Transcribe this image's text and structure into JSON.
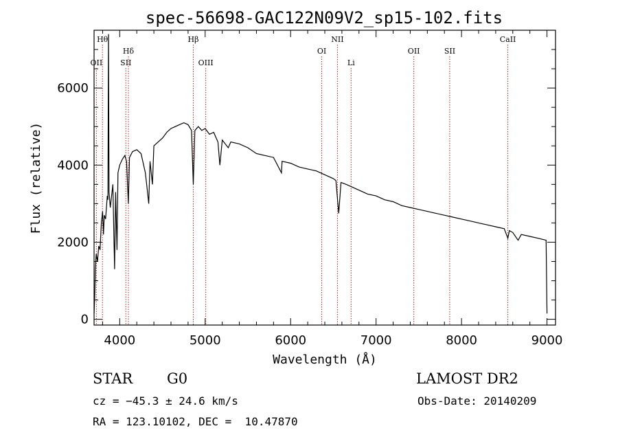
{
  "chart_data": {
    "type": "line",
    "title": "spec-56698-GAC122N09V2_sp15-102.fits",
    "xlabel": "Wavelength (Å)",
    "ylabel": "Flux (relative)",
    "xlim": [
      3700,
      9100
    ],
    "ylim": [
      -150,
      7500
    ],
    "xticks": [
      4000,
      5000,
      6000,
      7000,
      8000,
      9000
    ],
    "yticks": [
      0,
      2000,
      4000,
      6000
    ],
    "grid": false,
    "series": [
      {
        "points": [
          [
            3700,
            150
          ],
          [
            3708,
            600
          ],
          [
            3715,
            1300
          ],
          [
            3725,
            1700
          ],
          [
            3740,
            1500
          ],
          [
            3755,
            1900
          ],
          [
            3770,
            1800
          ],
          [
            3785,
            2500
          ],
          [
            3800,
            2800
          ],
          [
            3810,
            2200
          ],
          [
            3820,
            2700
          ],
          [
            3835,
            2600
          ],
          [
            3845,
            2900
          ],
          [
            3855,
            3200
          ],
          [
            3862,
            3100
          ],
          [
            3869,
            7400
          ],
          [
            3875,
            3300
          ],
          [
            3890,
            2900
          ],
          [
            3905,
            3200
          ],
          [
            3920,
            3500
          ],
          [
            3932,
            2100
          ],
          [
            3940,
            1300
          ],
          [
            3952,
            3300
          ],
          [
            3968,
            1800
          ],
          [
            3980,
            3800
          ],
          [
            4000,
            4000
          ],
          [
            4030,
            4150
          ],
          [
            4060,
            4250
          ],
          [
            4080,
            4100
          ],
          [
            4101,
            3000
          ],
          [
            4115,
            4200
          ],
          [
            4150,
            4350
          ],
          [
            4200,
            4400
          ],
          [
            4250,
            4300
          ],
          [
            4300,
            3800
          ],
          [
            4320,
            3400
          ],
          [
            4340,
            3000
          ],
          [
            4355,
            4100
          ],
          [
            4383,
            3500
          ],
          [
            4400,
            4500
          ],
          [
            4450,
            4600
          ],
          [
            4500,
            4700
          ],
          [
            4550,
            4850
          ],
          [
            4600,
            4950
          ],
          [
            4650,
            5000
          ],
          [
            4700,
            5050
          ],
          [
            4750,
            5100
          ],
          [
            4800,
            5050
          ],
          [
            4840,
            4900
          ],
          [
            4861,
            3500
          ],
          [
            4880,
            4900
          ],
          [
            4920,
            5000
          ],
          [
            4960,
            4900
          ],
          [
            5000,
            4950
          ],
          [
            5050,
            4800
          ],
          [
            5100,
            4850
          ],
          [
            5150,
            4600
          ],
          [
            5172,
            4000
          ],
          [
            5200,
            4650
          ],
          [
            5270,
            4450
          ],
          [
            5300,
            4600
          ],
          [
            5400,
            4550
          ],
          [
            5500,
            4450
          ],
          [
            5600,
            4300
          ],
          [
            5700,
            4250
          ],
          [
            5800,
            4200
          ],
          [
            5893,
            3800
          ],
          [
            5900,
            4100
          ],
          [
            6000,
            4050
          ],
          [
            6100,
            3950
          ],
          [
            6200,
            3900
          ],
          [
            6300,
            3850
          ],
          [
            6400,
            3750
          ],
          [
            6500,
            3650
          ],
          [
            6530,
            3600
          ],
          [
            6563,
            2750
          ],
          [
            6590,
            3550
          ],
          [
            6650,
            3500
          ],
          [
            6700,
            3450
          ],
          [
            6800,
            3350
          ],
          [
            6900,
            3250
          ],
          [
            7000,
            3200
          ],
          [
            7100,
            3100
          ],
          [
            7200,
            3050
          ],
          [
            7300,
            2950
          ],
          [
            7400,
            2900
          ],
          [
            7500,
            2850
          ],
          [
            7600,
            2800
          ],
          [
            7700,
            2750
          ],
          [
            7800,
            2700
          ],
          [
            7900,
            2650
          ],
          [
            8000,
            2600
          ],
          [
            8100,
            2550
          ],
          [
            8200,
            2500
          ],
          [
            8300,
            2450
          ],
          [
            8400,
            2400
          ],
          [
            8500,
            2350
          ],
          [
            8542,
            2100
          ],
          [
            8560,
            2300
          ],
          [
            8600,
            2250
          ],
          [
            8662,
            2050
          ],
          [
            8700,
            2200
          ],
          [
            8800,
            2150
          ],
          [
            8900,
            2100
          ],
          [
            8990,
            2050
          ],
          [
            9000,
            150
          ]
        ]
      }
    ],
    "markers": [
      {
        "wave": 3727,
        "label": "OII",
        "row": 3
      },
      {
        "wave": 3798,
        "label": "Hθ",
        "row": 1
      },
      {
        "wave": 4072,
        "label": "SII",
        "row": 3
      },
      {
        "wave": 4102,
        "label": "Hδ",
        "row": 2
      },
      {
        "wave": 4861,
        "label": "Hβ",
        "row": 1
      },
      {
        "wave": 5007,
        "label": "OIII",
        "row": 3
      },
      {
        "wave": 6364,
        "label": "OI",
        "row": 2
      },
      {
        "wave": 6548,
        "label": "NII",
        "row": 1
      },
      {
        "wave": 6708,
        "label": "Li",
        "row": 3
      },
      {
        "wave": 7442,
        "label": "OII",
        "row": 2
      },
      {
        "wave": 7862,
        "label": "SII",
        "row": 2
      },
      {
        "wave": 8542,
        "label": "CaII",
        "row": 1
      }
    ]
  },
  "info": {
    "object_class": "STAR",
    "subclass": "G0",
    "survey": "LAMOST DR2",
    "cz": "cz = −45.3 ± 24.6 km/s",
    "obs_date": "Obs-Date: 20140209",
    "coords": "RA = 123.10102, DEC =  10.47870"
  },
  "colors": {
    "spectrum": "#000000",
    "marker_lines": "#b22222"
  }
}
